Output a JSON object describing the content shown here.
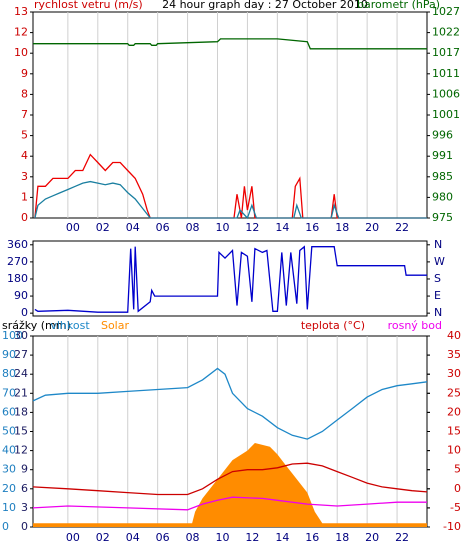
{
  "chart_data": [
    {
      "type": "line",
      "title": "24 hour graph day : 27 October 2010",
      "y_label": "rychlost vetru (m/s)",
      "y_label_color": "#cc0000",
      "y2_label": "barometr (hPa)",
      "y2_label_color": "#006600",
      "xlim": [
        -2.33,
        24
      ],
      "xticks": [
        {
          "value": 0,
          "label": "00"
        },
        {
          "value": 2,
          "label": "02"
        },
        {
          "value": 4,
          "label": "04"
        },
        {
          "value": 6,
          "label": "06"
        },
        {
          "value": 8,
          "label": "08"
        },
        {
          "value": 10,
          "label": "10"
        },
        {
          "value": 12,
          "label": "12"
        },
        {
          "value": 14,
          "label": "14"
        },
        {
          "value": 16,
          "label": "16"
        },
        {
          "value": 18,
          "label": "18"
        },
        {
          "value": 20,
          "label": "20"
        },
        {
          "value": 22,
          "label": "22"
        }
      ],
      "ylim": [
        0,
        13
      ],
      "yticks": [
        0,
        {
          "value": 1.3,
          "label": "1"
        },
        {
          "value": 2.6,
          "label": "3"
        },
        {
          "value": 3.9,
          "label": "4"
        },
        {
          "value": 5.2,
          "label": "5"
        },
        {
          "value": 6.5,
          "label": "7"
        },
        {
          "value": 7.8,
          "label": "8"
        },
        {
          "value": 9.1,
          "label": "9"
        },
        {
          "value": 10.4,
          "label": "10"
        },
        {
          "value": 11.7,
          "label": "12"
        },
        13
      ],
      "y2lim": [
        975,
        1027
      ],
      "y2ticks": [
        975,
        {
          "value": 980.2,
          "label": "980"
        },
        {
          "value": 985.4,
          "label": "985"
        },
        {
          "value": 990.6,
          "label": "991"
        },
        {
          "value": 995.8,
          "label": "996"
        },
        1001,
        {
          "value": 1006.2,
          "label": "1006"
        },
        {
          "value": 1011.4,
          "label": "1011"
        },
        {
          "value": 1016.6,
          "label": "1017"
        },
        {
          "value": 1021.8,
          "label": "1022"
        },
        1027
      ],
      "grid": true,
      "series": [
        {
          "color": "#ee0000",
          "x": [
            -2.2,
            -2,
            -1.5,
            -1,
            -0.5,
            0,
            0.5,
            1,
            1.5,
            2,
            2.5,
            3,
            3.5,
            4,
            4.5,
            5,
            5.3,
            5.5,
            11.1,
            11.3,
            11.6,
            11.8,
            12,
            12.3,
            12.5,
            15,
            15.2,
            15.5,
            15.7,
            17.6,
            17.8,
            18,
            24
          ],
          "values": [
            0,
            2,
            2,
            2.5,
            2.5,
            2.5,
            3,
            3,
            4,
            3.5,
            3,
            3.5,
            3.5,
            3,
            2.5,
            1.5,
            0.5,
            0,
            0,
            1.5,
            0,
            2,
            0.5,
            2,
            0,
            0,
            2,
            2.5,
            0,
            0,
            1.5,
            0,
            0
          ]
        },
        {
          "color": "#1a7fa0",
          "x": [
            -2.2,
            -2,
            -1.5,
            -1,
            -0.5,
            0,
            0.5,
            1,
            1.5,
            2,
            2.5,
            3,
            3.5,
            4,
            4.5,
            5,
            5.5,
            11.3,
            11.5,
            12,
            12.3,
            12.6,
            15.1,
            15.3,
            15.6,
            17.6,
            17.8,
            18.1,
            24
          ],
          "values": [
            0,
            0.8,
            1.2,
            1.4,
            1.6,
            1.8,
            2,
            2.2,
            2.3,
            2.2,
            2.1,
            2.2,
            2.1,
            1.6,
            1.2,
            0.6,
            0,
            0,
            0.5,
            0,
            0.8,
            0,
            0,
            0.8,
            0,
            0,
            0.8,
            0,
            0
          ]
        },
        {
          "color": "#006600",
          "axis": "y2",
          "x": [
            -2.33,
            4,
            4.1,
            4.4,
            4.5,
            5.5,
            5.6,
            5.9,
            6,
            10,
            10.2,
            14,
            16,
            16.2,
            24
          ],
          "values": [
            1019,
            1019,
            1018.6,
            1018.6,
            1019,
            1019,
            1018.6,
            1018.6,
            1019,
            1019.5,
            1020.2,
            1020.2,
            1019.5,
            1017.7,
            1017.7
          ]
        }
      ]
    },
    {
      "type": "line",
      "xlim": [
        -2.33,
        24
      ],
      "ylim": [
        -15,
        380
      ],
      "yticks": [
        0,
        90,
        180,
        270,
        360
      ],
      "y2ticks": [
        {
          "value": 0,
          "label": "N"
        },
        {
          "value": 90,
          "label": "E"
        },
        {
          "value": 180,
          "label": "S"
        },
        {
          "value": 270,
          "label": "W"
        },
        {
          "value": 360,
          "label": "N"
        }
      ],
      "series": [
        {
          "color": "#0000cc",
          "x": [
            -2.2,
            -2,
            0,
            2,
            4,
            4.2,
            4.4,
            4.5,
            4.7,
            5.5,
            5.6,
            5.8,
            10,
            10.1,
            10.5,
            11,
            11.3,
            11.6,
            12,
            12.3,
            12.5,
            13,
            13.3,
            13.7,
            14,
            14.3,
            14.6,
            14.9,
            15.3,
            15.5,
            15.8,
            16,
            16.3,
            17.8,
            18,
            22.5,
            22.6,
            24
          ],
          "values": [
            20,
            10,
            15,
            5,
            5,
            340,
            20,
            350,
            10,
            60,
            120,
            90,
            90,
            320,
            290,
            330,
            40,
            320,
            300,
            60,
            340,
            320,
            330,
            10,
            10,
            320,
            40,
            320,
            50,
            330,
            350,
            20,
            350,
            350,
            250,
            250,
            200,
            200
          ]
        }
      ]
    },
    {
      "type": "line",
      "y3_label": "srážky (mm)",
      "y3_label_color": "#000000",
      "xlim": [
        -2.33,
        24
      ],
      "xticks": [
        {
          "value": 0,
          "label": "00"
        },
        {
          "value": 2,
          "label": "02"
        },
        {
          "value": 4,
          "label": "04"
        },
        {
          "value": 6,
          "label": "06"
        },
        {
          "value": 8,
          "label": "08"
        },
        {
          "value": 10,
          "label": "10"
        },
        {
          "value": 12,
          "label": "12"
        },
        {
          "value": 14,
          "label": "14"
        },
        {
          "value": 16,
          "label": "16"
        },
        {
          "value": 18,
          "label": "18"
        },
        {
          "value": 20,
          "label": "20"
        },
        {
          "value": 22,
          "label": "22"
        }
      ],
      "ylim": [
        0,
        100
      ],
      "ytick_color": "#1e7fc0",
      "yticks": [
        0,
        10,
        20,
        30,
        40,
        50,
        60,
        70,
        80,
        90,
        100
      ],
      "y3lim": [
        0,
        30
      ],
      "y3tick_color": "#1a1a60",
      "y3ticks": [
        0,
        3,
        6,
        9,
        12,
        15,
        18,
        21,
        24,
        27,
        30
      ],
      "y2lim": [
        -10,
        40
      ],
      "y2tick_color": "#cc0000",
      "y2ticks": [
        -10,
        -5,
        0,
        5,
        10,
        15,
        20,
        25,
        30,
        35,
        40
      ],
      "grid": true,
      "series": [
        {
          "name": "Solar",
          "color": "#ff8c00",
          "area": true,
          "x": [
            -2.33,
            8.3,
            8.5,
            9,
            10,
            11,
            12,
            12.5,
            13.5,
            14,
            14.5,
            15,
            16,
            16.5,
            17,
            24
          ],
          "values": [
            2,
            2,
            8,
            15,
            25,
            35,
            40,
            44,
            42,
            38,
            33,
            28,
            18,
            8,
            2,
            2
          ]
        },
        {
          "name": "vlhkost",
          "color": "#1e88c8",
          "x": [
            -2.33,
            -1.5,
            0,
            2,
            4,
            6,
            8,
            9,
            10,
            10.5,
            11,
            12,
            13,
            14,
            15,
            16,
            17,
            18,
            19,
            20,
            21,
            22,
            23,
            24
          ],
          "values": [
            66,
            69,
            70,
            70,
            71,
            72,
            73,
            77,
            83,
            80,
            70,
            62,
            58,
            52,
            48,
            46,
            50,
            56,
            62,
            68,
            72,
            74,
            75,
            76
          ]
        },
        {
          "name": "teplota (°C)",
          "color": "#cc0000",
          "axis": "y2",
          "x": [
            -2.33,
            0,
            2,
            4,
            6,
            8,
            9,
            10,
            11,
            12,
            13,
            14,
            15,
            16,
            17,
            18,
            19,
            20,
            21,
            22,
            23,
            24
          ],
          "values": [
            0.5,
            0,
            -0.5,
            -1,
            -1.5,
            -1.5,
            0,
            2.5,
            4.5,
            5,
            5,
            5.5,
            6.5,
            6.7,
            6,
            4.5,
            3,
            1.5,
            0.5,
            0,
            -0.5,
            -0.8
          ]
        },
        {
          "name": "rosný bod",
          "color": "#ee00ee",
          "axis": "y2",
          "x": [
            -2.33,
            0,
            4,
            8,
            9,
            10,
            11,
            13,
            14,
            16,
            18,
            20,
            22,
            24
          ],
          "values": [
            -5,
            -4.5,
            -5,
            -5.5,
            -4,
            -3,
            -2.2,
            -2.5,
            -3,
            -4,
            -4.5,
            -4,
            -3.5,
            -3.5
          ]
        }
      ]
    }
  ]
}
